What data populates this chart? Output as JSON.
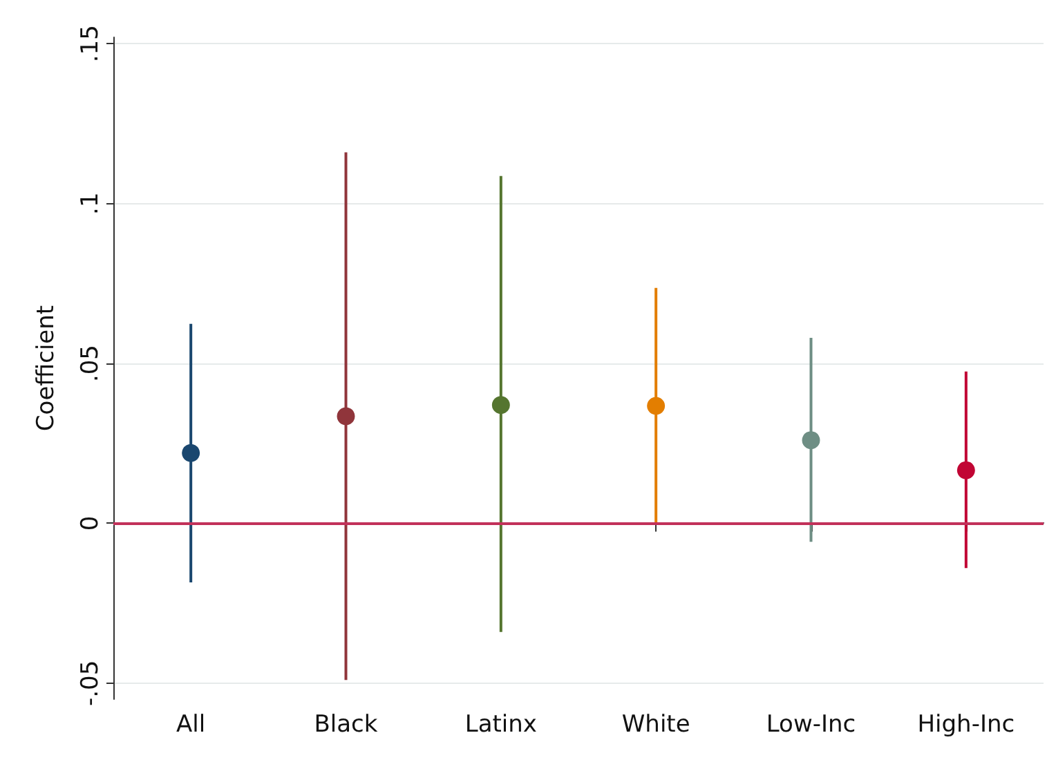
{
  "chart_data": {
    "type": "scatter",
    "ylabel": "Coefficient",
    "categories": [
      "All",
      "Black",
      "Latinx",
      "White",
      "Low-Inc",
      "High-Inc"
    ],
    "values": [
      0.022,
      0.0335,
      0.037,
      0.0367,
      0.026,
      0.0166
    ],
    "errors": [
      [
        -0.0185,
        0.0624
      ],
      [
        -0.049,
        0.116
      ],
      [
        -0.034,
        0.1086
      ],
      [
        0,
        0.0736
      ],
      [
        -0.0058,
        0.058
      ],
      [
        -0.014,
        0.0475
      ]
    ],
    "colors": [
      "#1a476f",
      "#90353b",
      "#55752f",
      "#e37e00",
      "#6e8e84",
      "#c10534"
    ],
    "ylim": [
      -0.055,
      0.152
    ],
    "yticks": [
      {
        "value": -0.05,
        "label": "-.05"
      },
      0,
      {
        "value": 0.05,
        "label": ".05"
      },
      {
        "value": 0.1,
        "label": ".1"
      },
      {
        "value": 0.15,
        "label": ".15"
      }
    ],
    "grid": "y",
    "marker": "circle",
    "ref_lines": [
      {
        "axis": "y",
        "value": 0,
        "color": "#c2315a"
      }
    ]
  }
}
